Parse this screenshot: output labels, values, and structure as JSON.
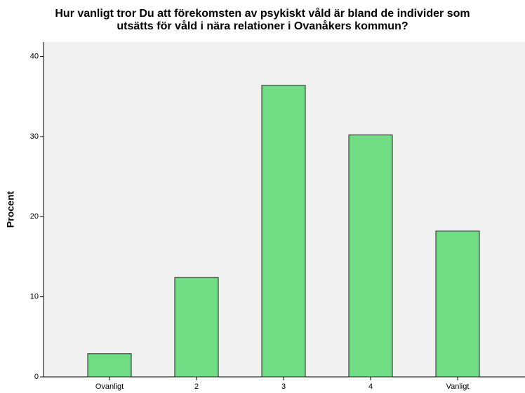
{
  "chart_data": {
    "type": "bar",
    "title": [
      "Hur vanligt tror Du att förekomsten av psykiskt våld är bland de individer som",
      "utsätts för våld i nära relationer i Ovanåkers kommun?"
    ],
    "ylabel": "Procent",
    "categories": [
      "Ovanligt",
      "2",
      "3",
      "4",
      "Vanligt"
    ],
    "values": [
      2.9,
      12.4,
      36.4,
      30.2,
      18.2
    ],
    "color": "#70dc84",
    "ylim": [
      0,
      41.8
    ],
    "yticks": [
      0,
      10,
      20,
      30,
      40
    ],
    "grid": false
  }
}
